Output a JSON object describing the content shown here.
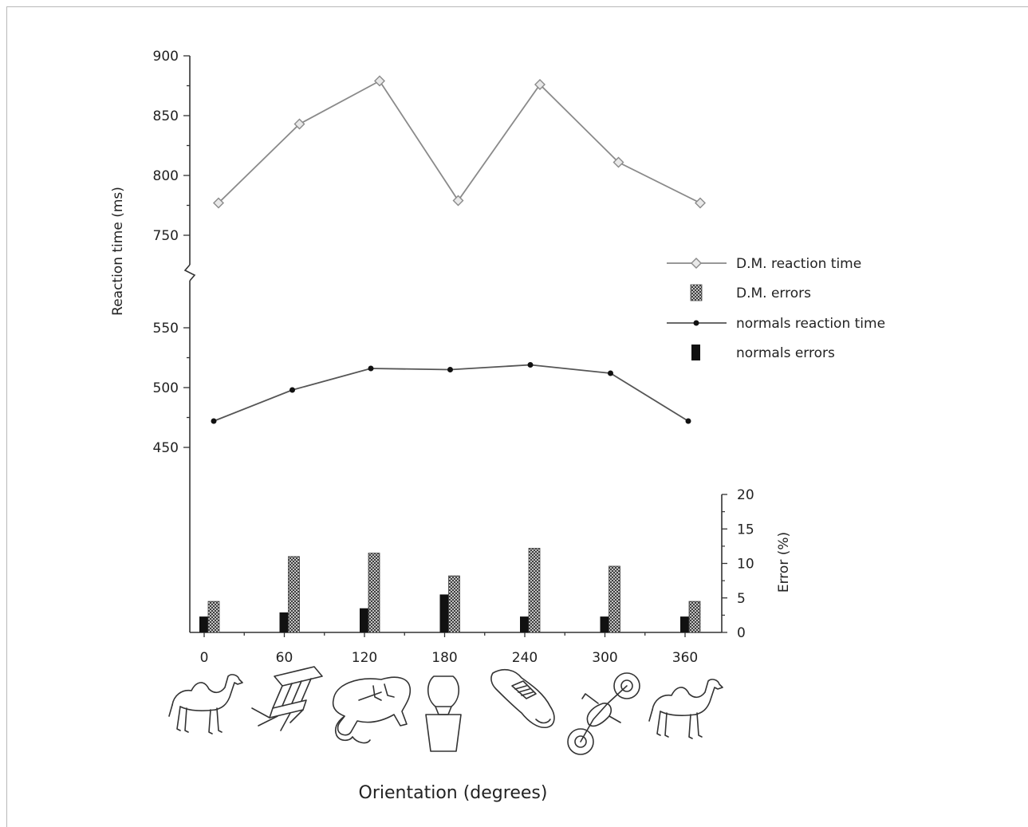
{
  "chart_data": {
    "type": "line",
    "title": "",
    "xlabel": "Orientation (degrees)",
    "ylabel": "Reaction time (ms)",
    "y2label": "Error (%)",
    "x": [
      0,
      60,
      120,
      180,
      240,
      300,
      360
    ],
    "x_tick_labels": [
      "0",
      "60",
      "120",
      "180",
      "240",
      "300",
      "360"
    ],
    "y_upper_ticks": [
      750,
      800,
      850,
      900
    ],
    "y_lower_ticks": [
      450,
      500,
      550
    ],
    "y_upper_range": [
      750,
      900
    ],
    "y_lower_range": [
      450,
      550
    ],
    "y2_ticks": [
      0,
      5,
      10,
      15,
      20
    ],
    "y2lim": [
      0,
      20
    ],
    "axis_break": true,
    "legend_position": "right",
    "series": [
      {
        "name": "D.M. reaction time",
        "kind": "line",
        "marker": "diamond-open",
        "color": "#7a7a7a",
        "values": [
          777,
          843,
          879,
          779,
          876,
          811,
          777
        ]
      },
      {
        "name": "D.M. errors",
        "kind": "bar",
        "pattern": "crosshatch",
        "color": "#555555",
        "values": [
          4.5,
          11,
          11.5,
          8.2,
          12.2,
          9.6,
          4.5
        ]
      },
      {
        "name": "normals reaction time",
        "kind": "line",
        "marker": "dot",
        "color": "#555555",
        "values": [
          472,
          498,
          516,
          515,
          519,
          512,
          472
        ]
      },
      {
        "name": "normals errors",
        "kind": "bar",
        "pattern": "solid",
        "color": "#111111",
        "values": [
          2.3,
          2.9,
          3.5,
          5.5,
          2.3,
          2.3,
          2.3
        ]
      }
    ],
    "pictures": [
      "camel",
      "chair",
      "elephant",
      "vase",
      "shoe",
      "motorcycle",
      "camel"
    ]
  }
}
